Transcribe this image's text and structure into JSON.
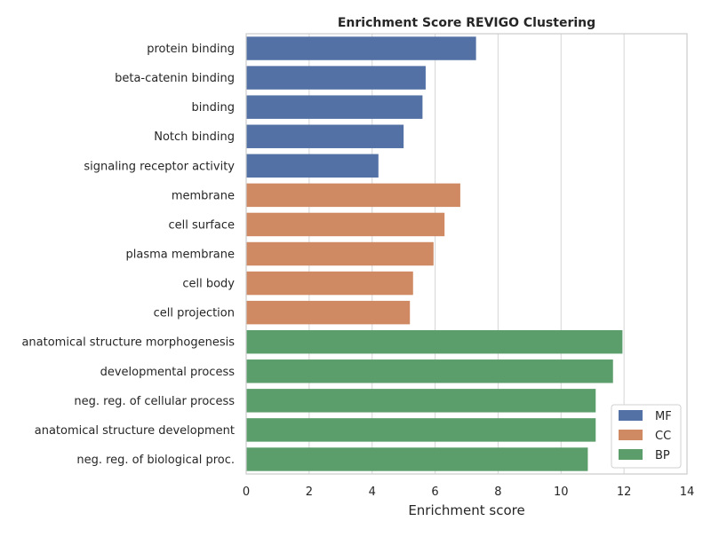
{
  "chart_data": {
    "type": "bar",
    "orientation": "horizontal",
    "title": "Enrichment Score REVIGO Clustering",
    "xlabel": "Enrichment score",
    "ylabel": "",
    "xlim": [
      0,
      14
    ],
    "xticks": [
      "0",
      "2",
      "4",
      "6",
      "8",
      "10",
      "12",
      "14"
    ],
    "grid": true,
    "legend_position": "lower-right",
    "categories": [
      "protein binding",
      "beta-catenin binding",
      "binding",
      "Notch binding",
      "signaling receptor activity",
      "membrane",
      "cell surface",
      "plasma membrane",
      "cell body",
      "cell projection",
      "anatomical structure morphogenesis",
      "developmental process",
      "neg. reg. of cellular process",
      "anatomical structure development",
      "neg. reg. of biological proc."
    ],
    "values": [
      7.3,
      5.7,
      5.6,
      5.0,
      4.2,
      6.8,
      6.3,
      5.95,
      5.3,
      5.2,
      11.95,
      11.65,
      11.1,
      11.1,
      10.85
    ],
    "groups": [
      "MF",
      "MF",
      "MF",
      "MF",
      "MF",
      "CC",
      "CC",
      "CC",
      "CC",
      "CC",
      "BP",
      "BP",
      "BP",
      "BP",
      "BP"
    ],
    "series": [
      {
        "name": "MF",
        "color": "#5471a5"
      },
      {
        "name": "CC",
        "color": "#cf8963"
      },
      {
        "name": "BP",
        "color": "#5c9e6b"
      }
    ]
  }
}
